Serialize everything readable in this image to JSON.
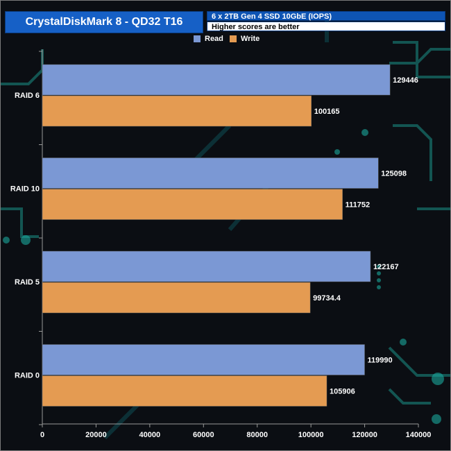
{
  "header": {
    "title": "CrystalDiskMark 8 - QD32 T16",
    "subtitle": "6 x 2TB Gen 4 SSD 10GbE (IOPS)",
    "note": "Higher scores are better"
  },
  "chart_data": {
    "type": "bar",
    "orientation": "horizontal",
    "categories": [
      "RAID 6",
      "RAID 10",
      "RAID 5",
      "RAID 0"
    ],
    "series": [
      {
        "name": "Read",
        "color": "#7b98d4",
        "values": [
          129446,
          125098,
          122167,
          119990
        ],
        "labels": [
          "129446",
          "125098",
          "122167",
          "119990"
        ]
      },
      {
        "name": "Write",
        "color": "#e49b52",
        "values": [
          100165,
          111752,
          99734.4,
          105906
        ],
        "labels": [
          "100165",
          "111752",
          "99734.4",
          "105906"
        ]
      }
    ],
    "xlim": [
      0,
      140000
    ],
    "xticks": [
      0,
      20000,
      40000,
      60000,
      80000,
      100000,
      120000,
      140000
    ],
    "legend_position": "top-center",
    "grid": false
  }
}
